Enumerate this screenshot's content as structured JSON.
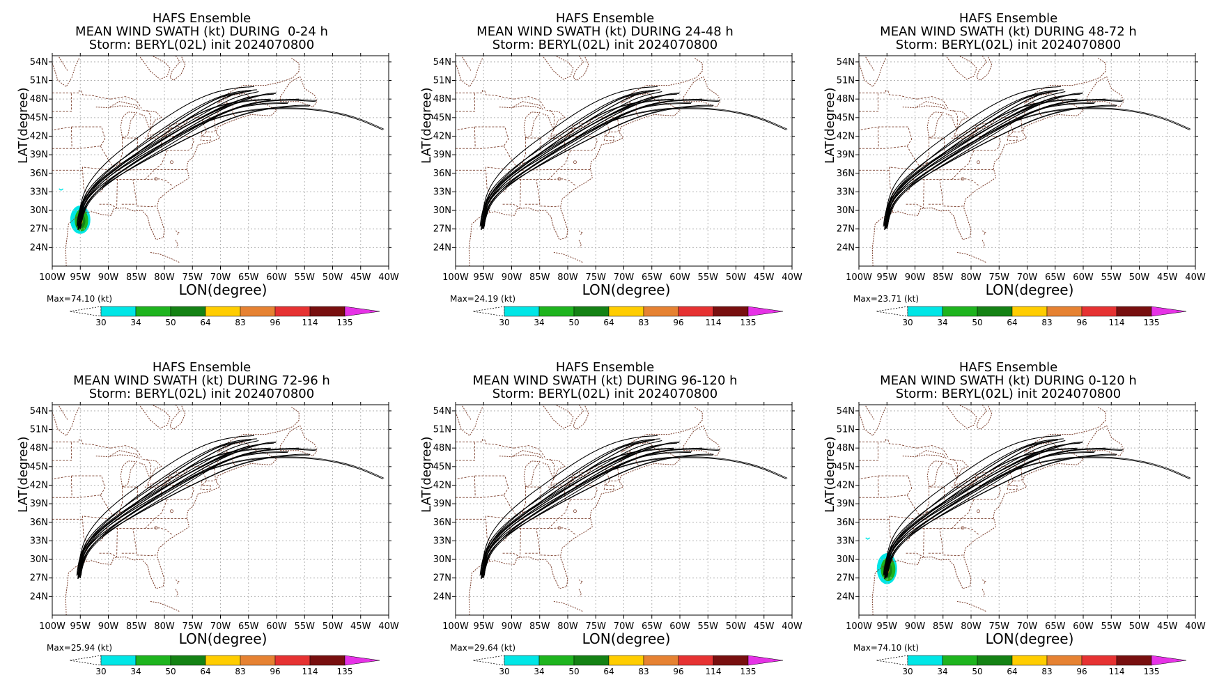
{
  "page": {
    "background": "#ffffff"
  },
  "common": {
    "title_line1": "HAFS Ensemble",
    "title_line3": "Storm: BERYL(02L) init 2024070800",
    "xlabel": "LON(degree)",
    "ylabel": "LAT(degree)",
    "lon_ticks": [
      "100W",
      "95W",
      "90W",
      "85W",
      "80W",
      "75W",
      "70W",
      "65W",
      "60W",
      "55W",
      "50W",
      "45W",
      "40W"
    ],
    "lat_ticks": [
      "54N",
      "51N",
      "48N",
      "45N",
      "42N",
      "39N",
      "36N",
      "33N",
      "30N",
      "27N",
      "24N"
    ],
    "colorbar": {
      "labels": [
        "30",
        "34",
        "50",
        "64",
        "83",
        "96",
        "114",
        "135"
      ],
      "colors": [
        "#00e6e6",
        "#1eb41e",
        "#148214",
        "#ffcd00",
        "#e68232",
        "#e63232",
        "#780f0f",
        "#e632e6"
      ]
    },
    "colors": {
      "track": "#000000",
      "coast": "#7a3d2a",
      "grid": "#b4b4b4"
    }
  },
  "panels": [
    {
      "id": "0-24",
      "title_line2": "MEAN WIND SWATH (kt) DURING  0-24 h",
      "max_label": "Max=74.10 (kt)"
    },
    {
      "id": "24-48",
      "title_line2": "MEAN WIND SWATH (kt) DURING 24-48 h",
      "max_label": "Max=24.19 (kt)"
    },
    {
      "id": "48-72",
      "title_line2": "MEAN WIND SWATH (kt) DURING 48-72 h",
      "max_label": "Max=23.71 (kt)"
    },
    {
      "id": "72-96",
      "title_line2": "MEAN WIND SWATH (kt) DURING 72-96 h",
      "max_label": "Max=25.94 (kt)"
    },
    {
      "id": "96-120",
      "title_line2": "MEAN WIND SWATH (kt) DURING 96-120 h",
      "max_label": "Max=29.64 (kt)"
    },
    {
      "id": "0-120",
      "title_line2": "MEAN WIND SWATH (kt) DURING 0-120 h",
      "max_label": "Max=74.10 (kt)"
    }
  ],
  "chart_data": {
    "type": "map",
    "grid": "on",
    "lon_range": [
      -100,
      -40
    ],
    "lat_range": [
      21,
      55
    ],
    "tracks": [
      [
        [
          -95.2,
          27.0
        ],
        [
          -95.0,
          30.0
        ],
        [
          -93.5,
          33.0
        ],
        [
          -90.0,
          36.0
        ],
        [
          -85.0,
          39.0
        ],
        [
          -79.5,
          42.0
        ],
        [
          -74.5,
          44.5
        ],
        [
          -70.0,
          46.5
        ],
        [
          -66.0,
          47.8
        ],
        [
          -61.0,
          48.0
        ]
      ],
      [
        [
          -95.4,
          27.2
        ],
        [
          -94.8,
          30.5
        ],
        [
          -92.5,
          33.5
        ],
        [
          -88.5,
          36.5
        ],
        [
          -83.5,
          39.5
        ],
        [
          -78.5,
          42.5
        ],
        [
          -73.5,
          45.0
        ],
        [
          -69.0,
          47.0
        ],
        [
          -64.5,
          48.5
        ],
        [
          -60.5,
          48.8
        ]
      ],
      [
        [
          -95.1,
          27.1
        ],
        [
          -94.9,
          30.2
        ],
        [
          -93.0,
          33.0
        ],
        [
          -89.5,
          35.8
        ],
        [
          -84.5,
          38.6
        ],
        [
          -79.5,
          41.2
        ],
        [
          -74.5,
          43.6
        ],
        [
          -69.5,
          45.3
        ],
        [
          -64.0,
          46.3
        ],
        [
          -58.0,
          46.5
        ],
        [
          -52.0,
          46.2
        ],
        [
          -46.0,
          45.0
        ],
        [
          -41.0,
          43.0
        ]
      ],
      [
        [
          -95.5,
          27.5
        ],
        [
          -95.2,
          30.0
        ],
        [
          -94.0,
          32.5
        ],
        [
          -91.0,
          35.0
        ],
        [
          -87.0,
          37.8
        ],
        [
          -83.0,
          40.5
        ],
        [
          -79.0,
          43.0
        ],
        [
          -75.0,
          45.2
        ],
        [
          -71.0,
          46.8
        ],
        [
          -67.0,
          47.6
        ]
      ],
      [
        [
          -95.0,
          27.0
        ],
        [
          -94.5,
          30.0
        ],
        [
          -92.0,
          33.0
        ],
        [
          -87.5,
          36.0
        ],
        [
          -82.0,
          39.0
        ],
        [
          -76.5,
          42.0
        ],
        [
          -71.5,
          44.8
        ],
        [
          -67.0,
          46.8
        ],
        [
          -62.0,
          47.8
        ],
        [
          -56.0,
          48.0
        ]
      ],
      [
        [
          -95.3,
          27.3
        ],
        [
          -95.1,
          30.3
        ],
        [
          -93.8,
          33.3
        ],
        [
          -90.5,
          36.3
        ],
        [
          -86.0,
          39.3
        ],
        [
          -81.5,
          42.0
        ],
        [
          -77.0,
          44.8
        ],
        [
          -73.0,
          47.0
        ],
        [
          -69.5,
          48.5
        ],
        [
          -66.0,
          49.0
        ]
      ],
      [
        [
          -95.2,
          27.2
        ],
        [
          -94.6,
          30.0
        ],
        [
          -92.8,
          32.6
        ],
        [
          -89.0,
          35.2
        ],
        [
          -84.0,
          37.8
        ],
        [
          -78.5,
          40.5
        ],
        [
          -73.0,
          43.0
        ],
        [
          -67.5,
          45.2
        ],
        [
          -62.0,
          46.5
        ],
        [
          -56.5,
          47.0
        ],
        [
          -54.0,
          47.0
        ]
      ],
      [
        [
          -95.4,
          27.4
        ],
        [
          -95.0,
          30.4
        ],
        [
          -93.2,
          33.6
        ],
        [
          -89.8,
          36.6
        ],
        [
          -85.5,
          39.8
        ],
        [
          -81.0,
          42.8
        ],
        [
          -76.5,
          45.5
        ],
        [
          -72.0,
          47.8
        ],
        [
          -67.5,
          49.2
        ],
        [
          -63.5,
          49.5
        ]
      ],
      [
        [
          -95.0,
          27.3
        ],
        [
          -94.7,
          29.8
        ],
        [
          -93.0,
          32.2
        ],
        [
          -90.0,
          34.8
        ],
        [
          -86.0,
          37.4
        ],
        [
          -81.5,
          40.0
        ],
        [
          -77.0,
          42.4
        ],
        [
          -72.5,
          44.6
        ],
        [
          -68.0,
          46.4
        ],
        [
          -63.0,
          47.2
        ],
        [
          -58.0,
          47.3
        ]
      ],
      [
        [
          -95.3,
          27.0
        ],
        [
          -94.9,
          30.1
        ],
        [
          -93.0,
          32.8
        ],
        [
          -89.2,
          35.5
        ],
        [
          -84.8,
          38.0
        ],
        [
          -80.2,
          40.8
        ],
        [
          -75.5,
          43.5
        ],
        [
          -71.0,
          45.8
        ],
        [
          -66.8,
          47.6
        ],
        [
          -62.5,
          48.8
        ],
        [
          -60.0,
          49.0
        ]
      ],
      [
        [
          -95.5,
          27.6
        ],
        [
          -95.1,
          30.6
        ],
        [
          -94.0,
          33.8
        ],
        [
          -91.5,
          36.8
        ],
        [
          -87.8,
          39.8
        ],
        [
          -83.5,
          42.6
        ],
        [
          -79.5,
          45.2
        ],
        [
          -75.5,
          47.4
        ],
        [
          -71.5,
          49.0
        ],
        [
          -67.5,
          49.8
        ],
        [
          -64.0,
          50.0
        ]
      ],
      [
        [
          -95.1,
          27.4
        ],
        [
          -94.6,
          30.2
        ],
        [
          -92.4,
          32.9
        ],
        [
          -88.6,
          35.7
        ],
        [
          -84.0,
          38.4
        ],
        [
          -79.0,
          41.1
        ],
        [
          -74.0,
          43.7
        ],
        [
          -69.0,
          45.9
        ],
        [
          -64.0,
          47.4
        ],
        [
          -58.5,
          47.9
        ],
        [
          -53.0,
          47.6
        ]
      ],
      [
        [
          -95.2,
          27.1
        ],
        [
          -94.8,
          29.9
        ],
        [
          -93.4,
          32.4
        ],
        [
          -90.6,
          35.0
        ],
        [
          -86.8,
          37.6
        ],
        [
          -82.4,
          40.2
        ],
        [
          -77.8,
          42.8
        ],
        [
          -73.2,
          45.2
        ],
        [
          -68.8,
          47.2
        ],
        [
          -64.8,
          48.4
        ]
      ],
      [
        [
          -95.4,
          27.0
        ],
        [
          -95.0,
          30.0
        ],
        [
          -93.6,
          33.1
        ],
        [
          -90.2,
          36.0
        ],
        [
          -85.6,
          38.9
        ],
        [
          -80.6,
          41.6
        ],
        [
          -75.8,
          44.2
        ],
        [
          -71.2,
          46.6
        ],
        [
          -67.2,
          48.4
        ],
        [
          -63.2,
          49.2
        ]
      ],
      [
        [
          -95.3,
          27.5
        ],
        [
          -94.8,
          30.4
        ],
        [
          -92.9,
          33.4
        ],
        [
          -89.4,
          36.2
        ],
        [
          -85.2,
          39.1
        ],
        [
          -80.8,
          41.9
        ],
        [
          -76.2,
          44.6
        ],
        [
          -71.8,
          47.0
        ],
        [
          -67.8,
          48.8
        ],
        [
          -64.5,
          49.3
        ]
      ]
    ],
    "swath_0_24": [
      {
        "level": "30",
        "lon": -95.0,
        "lat": 28.5,
        "rlon": 1.8,
        "rlat": 2.3
      },
      {
        "level": "34",
        "lon": -94.8,
        "lat": 28.4,
        "rlon": 1.2,
        "rlat": 1.8
      },
      {
        "level": "50",
        "lon": -94.9,
        "lat": 28.3,
        "rlon": 0.8,
        "rlat": 1.2
      },
      {
        "level": "64",
        "lon": -95.0,
        "lat": 28.2,
        "rlon": 0.4,
        "rlat": 0.6
      }
    ],
    "swath_0_120": [
      {
        "level": "30",
        "lon": -95.0,
        "lat": 28.5,
        "rlon": 1.8,
        "rlat": 2.5
      },
      {
        "level": "34",
        "lon": -94.8,
        "lat": 28.4,
        "rlon": 1.3,
        "rlat": 1.9
      },
      {
        "level": "50",
        "lon": -94.9,
        "lat": 28.3,
        "rlon": 0.8,
        "rlat": 1.3
      },
      {
        "level": "64",
        "lon": -95.0,
        "lat": 28.2,
        "rlon": 0.4,
        "rlat": 0.6
      }
    ]
  }
}
